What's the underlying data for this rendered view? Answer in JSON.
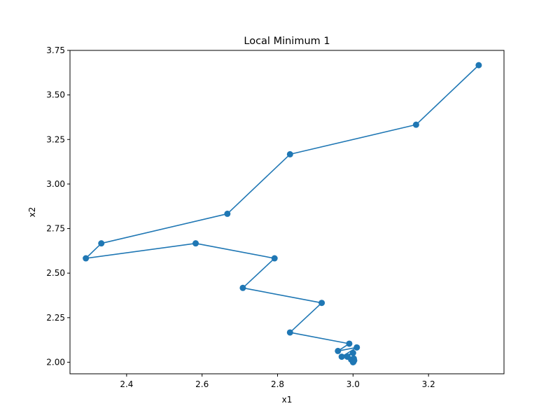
{
  "chart_data": {
    "type": "line",
    "title": "Local Minimum 1",
    "xlabel": "x1",
    "ylabel": "x2",
    "xlim": [
      2.25,
      3.4
    ],
    "ylim": [
      1.935,
      3.75
    ],
    "xticks": [
      2.4,
      2.6,
      2.8,
      3.0,
      3.2
    ],
    "xtick_labels": [
      "2.4",
      "2.6",
      "2.8",
      "3.0",
      "3.2"
    ],
    "yticks": [
      2.0,
      2.25,
      2.5,
      2.75,
      3.0,
      3.25,
      3.5,
      3.75
    ],
    "ytick_labels": [
      "2.00",
      "2.25",
      "2.50",
      "2.75",
      "3.00",
      "3.25",
      "3.50",
      "3.75"
    ],
    "grid": false,
    "color": "#1f77b4",
    "marker": "circle",
    "series": [
      {
        "x": [
          3.333,
          3.167,
          2.833,
          2.667,
          2.333,
          2.292,
          2.583,
          2.792,
          2.708,
          2.917,
          2.833,
          2.99,
          2.96,
          3.01,
          2.97,
          3.0,
          2.985,
          3.003,
          2.995,
          3.002,
          3.0,
          3.001,
          3.0
        ],
        "y": [
          3.667,
          3.333,
          3.167,
          2.833,
          2.667,
          2.583,
          2.667,
          2.583,
          2.417,
          2.333,
          2.167,
          2.104,
          2.063,
          2.083,
          2.031,
          2.052,
          2.031,
          2.01,
          2.015,
          2.02,
          2.004,
          2.002,
          2.0
        ]
      }
    ]
  }
}
